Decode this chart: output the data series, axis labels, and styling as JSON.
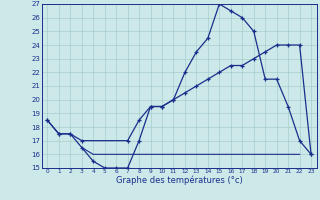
{
  "xlabel": "Graphe des températures (°c)",
  "bg_color": "#cce8e8",
  "line_color": "#1a2e8c",
  "ylim": [
    15,
    27
  ],
  "xlim": [
    -0.5,
    23.5
  ],
  "yticks": [
    15,
    16,
    17,
    18,
    19,
    20,
    21,
    22,
    23,
    24,
    25,
    26,
    27
  ],
  "xticks": [
    0,
    1,
    2,
    3,
    4,
    5,
    6,
    7,
    8,
    9,
    10,
    11,
    12,
    13,
    14,
    15,
    16,
    17,
    18,
    19,
    20,
    21,
    22,
    23
  ],
  "line1_x": [
    0,
    1,
    2,
    3,
    4,
    5,
    6,
    7,
    8,
    9,
    10,
    11,
    12,
    13,
    14,
    15,
    16,
    17,
    18,
    19,
    20,
    21,
    22,
    23
  ],
  "line1_y": [
    18.5,
    17.5,
    17.5,
    16.5,
    15.5,
    15.0,
    15.0,
    15.0,
    17.0,
    19.5,
    19.5,
    20.0,
    22.0,
    23.5,
    24.5,
    27.0,
    26.5,
    26.0,
    25.0,
    21.5,
    21.5,
    19.5,
    17.0,
    16.0
  ],
  "line2_x": [
    0,
    1,
    2,
    3,
    7,
    8,
    9,
    10,
    11,
    12,
    13,
    14,
    15,
    16,
    17,
    18,
    19,
    20,
    21,
    22,
    23
  ],
  "line2_y": [
    18.5,
    17.5,
    17.5,
    17.0,
    17.0,
    18.5,
    19.5,
    19.5,
    20.0,
    20.5,
    21.0,
    21.5,
    22.0,
    22.5,
    22.5,
    23.0,
    23.5,
    24.0,
    24.0,
    24.0,
    16.0
  ],
  "flat_line_x": [
    3,
    4,
    5,
    6,
    7,
    8,
    9,
    10,
    11,
    12,
    13,
    14,
    15,
    16,
    17,
    18,
    19,
    20,
    21,
    22
  ],
  "flat_line_y": [
    16.5,
    16.0,
    16.0,
    16.0,
    16.0,
    16.0,
    16.0,
    16.0,
    16.0,
    16.0,
    16.0,
    16.0,
    16.0,
    16.0,
    16.0,
    16.0,
    16.0,
    16.0,
    16.0,
    16.0
  ]
}
